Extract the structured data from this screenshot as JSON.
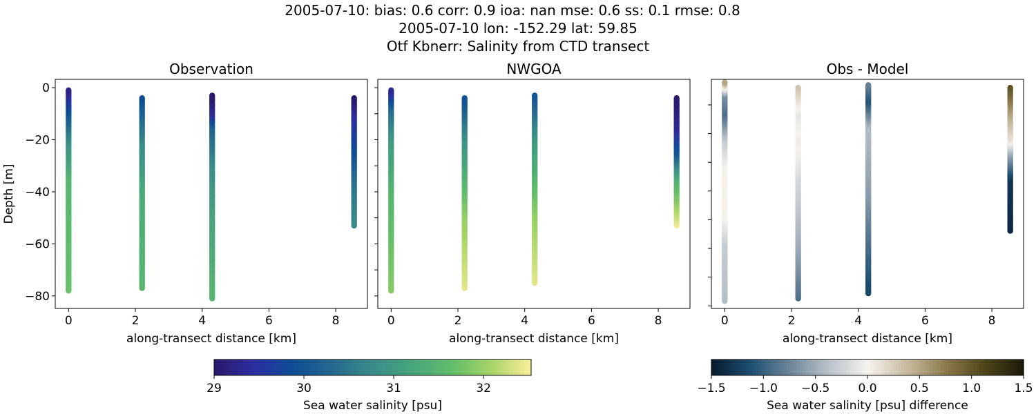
{
  "title_lines": [
    "2005-07-10: bias: 0.6  corr: 0.9  ioa: nan  mse: 0.6  ss: 0.1  rmse: 0.8",
    "2005-07-10 lon: -152.29 lat: 59.85",
    "Otf Kbnerr: Salinity from CTD transect"
  ],
  "chart_data": [
    {
      "type": "scatter",
      "title": "Observation",
      "xlabel": "along-transect distance [km]",
      "ylabel": "Depth [m]",
      "xlim": [
        -0.4,
        8.95
      ],
      "ylim": [
        -84.8,
        3.2
      ],
      "xticks": [
        0,
        2,
        4,
        6,
        8
      ],
      "yticks": [
        0,
        -20,
        -40,
        -60,
        -80
      ],
      "ytick_labels": [
        "0",
        "−20",
        "−40",
        "−60",
        "−80"
      ],
      "xtick_labels": [
        "0",
        "2",
        "4",
        "6",
        "8"
      ],
      "colormap": "haline",
      "clim": [
        29.0,
        32.53
      ],
      "profiles": [
        {
          "x": 0.0,
          "knots": [
            [
              -1,
              29.2
            ],
            [
              -10,
              30.0
            ],
            [
              -20,
              30.8
            ],
            [
              -35,
              31.5
            ],
            [
              -78,
              31.7
            ]
          ]
        },
        {
          "x": 2.2,
          "knots": [
            [
              -4,
              29.9
            ],
            [
              -20,
              30.7
            ],
            [
              -40,
              31.3
            ],
            [
              -77,
              31.5
            ]
          ]
        },
        {
          "x": 4.3,
          "knots": [
            [
              -3,
              29.0
            ],
            [
              -10,
              29.4
            ],
            [
              -15,
              30.2
            ],
            [
              -30,
              30.8
            ],
            [
              -50,
              31.2
            ],
            [
              -81,
              31.5
            ]
          ]
        },
        {
          "x": 8.55,
          "knots": [
            [
              -4,
              29.0
            ],
            [
              -10,
              29.4
            ],
            [
              -25,
              29.9
            ],
            [
              -35,
              30.4
            ],
            [
              -53,
              30.8
            ]
          ]
        }
      ]
    },
    {
      "type": "scatter",
      "title": "NWGOA",
      "xlabel": "along-transect distance [km]",
      "xlim": [
        -0.4,
        8.95
      ],
      "ylim": [
        -84.8,
        3.2
      ],
      "xticks": [
        0,
        2,
        4,
        6,
        8
      ],
      "xtick_labels": [
        "0",
        "2",
        "4",
        "6",
        "8"
      ],
      "colormap": "haline",
      "clim": [
        29.0,
        32.53
      ],
      "profiles": [
        {
          "x": 0.0,
          "knots": [
            [
              -1,
              29.3
            ],
            [
              -8,
              30.3
            ],
            [
              -20,
              31.0
            ],
            [
              -40,
              31.5
            ],
            [
              -78,
              31.9
            ]
          ]
        },
        {
          "x": 2.2,
          "knots": [
            [
              -4,
              29.9
            ],
            [
              -20,
              30.9
            ],
            [
              -50,
              32.0
            ],
            [
              -77,
              32.4
            ]
          ]
        },
        {
          "x": 4.3,
          "knots": [
            [
              -3,
              30.0
            ],
            [
              -20,
              31.0
            ],
            [
              -50,
              32.0
            ],
            [
              -75,
              32.4
            ]
          ]
        },
        {
          "x": 8.55,
          "knots": [
            [
              -4,
              29.0
            ],
            [
              -15,
              29.3
            ],
            [
              -25,
              30.0
            ],
            [
              -35,
              31.4
            ],
            [
              -53,
              32.5
            ]
          ]
        }
      ]
    },
    {
      "type": "scatter",
      "title": "Obs - Model",
      "xlabel": "along-transect distance [km]",
      "xlim": [
        -0.4,
        8.95
      ],
      "ylim": [
        -84.8,
        3.2
      ],
      "xticks": [
        0,
        2,
        4,
        6,
        8
      ],
      "xtick_labels": [
        "0",
        "2",
        "4",
        "6",
        "8"
      ],
      "colormap": "diff",
      "clim": [
        -1.5,
        1.5
      ],
      "profiles": [
        {
          "x": 0.0,
          "knots": [
            [
              2,
              0.5
            ],
            [
              -3,
              -0.7
            ],
            [
              -10,
              -0.9
            ],
            [
              -20,
              -0.3
            ],
            [
              -30,
              0.0
            ],
            [
              -50,
              0.0
            ],
            [
              -60,
              -0.3
            ],
            [
              -82,
              -0.4
            ]
          ]
        },
        {
          "x": 2.2,
          "knots": [
            [
              0,
              0.3
            ],
            [
              -10,
              -0.1
            ],
            [
              -20,
              0.05
            ],
            [
              -35,
              -0.2
            ],
            [
              -60,
              -0.5
            ],
            [
              -81,
              -0.9
            ]
          ]
        },
        {
          "x": 4.3,
          "knots": [
            [
              1,
              -0.8
            ],
            [
              -5,
              -1.1
            ],
            [
              -15,
              -0.4
            ],
            [
              -40,
              -0.6
            ],
            [
              -79,
              -1.2
            ]
          ]
        },
        {
          "x": 8.55,
          "knots": [
            [
              0,
              1.0
            ],
            [
              -10,
              0.5
            ],
            [
              -20,
              0.1
            ],
            [
              -25,
              -0.5
            ],
            [
              -35,
              -1.3
            ],
            [
              -55,
              -1.4
            ]
          ]
        }
      ]
    }
  ],
  "colorbars": [
    {
      "label": "Sea water salinity [psu]",
      "ticks": [
        29,
        30,
        31,
        32
      ],
      "tick_labels": [
        "29",
        "30",
        "31",
        "32"
      ],
      "range": [
        29.0,
        32.53
      ],
      "colormap": "haline"
    },
    {
      "label": "Sea water salinity [psu] difference",
      "ticks": [
        -1.5,
        -1.0,
        -0.5,
        0.0,
        0.5,
        1.0,
        1.5
      ],
      "tick_labels": [
        "−1.5",
        "−1.0",
        "−0.5",
        "0.0",
        "0.5",
        "1.0",
        "1.5"
      ],
      "range": [
        -1.5,
        1.5
      ],
      "colormap": "diff"
    }
  ],
  "colormaps": {
    "haline": [
      "#2a186c",
      "#2c2fa0",
      "#0e4e96",
      "#26698e",
      "#3a8c8a",
      "#46a57c",
      "#62bd6a",
      "#a6d467",
      "#fdef9a"
    ],
    "diff": [
      "#07192e",
      "#1c4f72",
      "#6c8599",
      "#b9c1c9",
      "#f5f2ee",
      "#c9bba0",
      "#8c7b4c",
      "#4e4519",
      "#1c1a0a"
    ]
  }
}
